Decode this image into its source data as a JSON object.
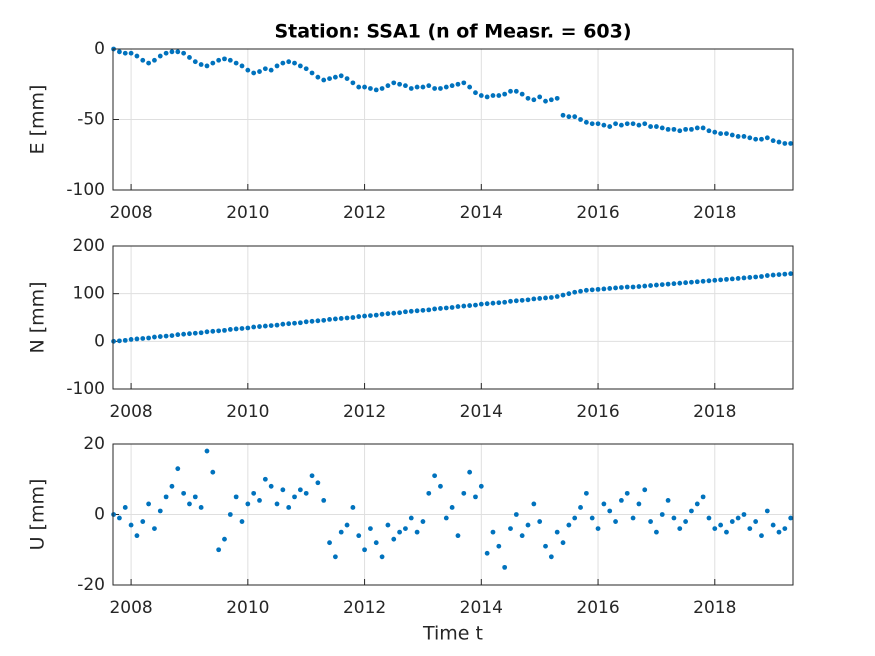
{
  "chart_data": [
    {
      "type": "scatter",
      "title": "Station: SSA1 (n of Measr. = 603)",
      "y_label": "E [mm]",
      "color": "#0072bd",
      "grid": true,
      "xlim": [
        2007.69,
        2019.34
      ],
      "xticks": [
        2008,
        2010,
        2012,
        2014,
        2016,
        2018
      ],
      "ylim": [
        -100,
        0
      ],
      "yticks": [
        -100,
        -50,
        0
      ],
      "x": [
        2007.7,
        2007.8,
        2007.9,
        2008,
        2008.1,
        2008.2,
        2008.3,
        2008.4,
        2008.5,
        2008.6,
        2008.7,
        2008.8,
        2008.9,
        2009,
        2009.1,
        2009.2,
        2009.3,
        2009.4,
        2009.5,
        2009.6,
        2009.7,
        2009.8,
        2009.9,
        2010,
        2010.1,
        2010.2,
        2010.3,
        2010.4,
        2010.5,
        2010.6,
        2010.7,
        2010.8,
        2010.9,
        2011,
        2011.1,
        2011.2,
        2011.3,
        2011.4,
        2011.5,
        2011.6,
        2011.7,
        2011.8,
        2011.9,
        2012,
        2012.1,
        2012.2,
        2012.3,
        2012.4,
        2012.5,
        2012.6,
        2012.7,
        2012.8,
        2012.9,
        2013,
        2013.1,
        2013.2,
        2013.3,
        2013.4,
        2013.5,
        2013.6,
        2013.7,
        2013.8,
        2013.9,
        2014,
        2014.1,
        2014.2,
        2014.3,
        2014.4,
        2014.5,
        2014.6,
        2014.7,
        2014.8,
        2014.9,
        2015,
        2015.1,
        2015.2,
        2015.3,
        2015.4,
        2015.5,
        2015.6,
        2015.7,
        2015.8,
        2015.9,
        2016,
        2016.1,
        2016.2,
        2016.3,
        2016.4,
        2016.5,
        2016.6,
        2016.7,
        2016.8,
        2016.9,
        2017,
        2017.1,
        2017.2,
        2017.3,
        2017.4,
        2017.5,
        2017.6,
        2017.7,
        2017.8,
        2017.9,
        2018,
        2018.1,
        2018.2,
        2018.3,
        2018.4,
        2018.5,
        2018.6,
        2018.7,
        2018.8,
        2018.9,
        2019,
        2019.1,
        2019.2,
        2019.3
      ],
      "values": [
        0,
        -2,
        -3,
        -3,
        -5,
        -8,
        -10,
        -8,
        -5,
        -3,
        -2,
        -2,
        -3,
        -6,
        -9,
        -11,
        -12,
        -10,
        -8,
        -7,
        -8,
        -10,
        -12,
        -15,
        -17,
        -16,
        -14,
        -15,
        -12,
        -10,
        -9,
        -10,
        -12,
        -14,
        -17,
        -20,
        -22,
        -21,
        -20,
        -19,
        -21,
        -24,
        -27,
        -27,
        -28,
        -29,
        -28,
        -26,
        -24,
        -25,
        -26,
        -28,
        -27,
        -27,
        -26,
        -28,
        -28,
        -27,
        -26,
        -25,
        -24,
        -27,
        -31,
        -33,
        -34,
        -33,
        -33,
        -32,
        -30,
        -30,
        -32,
        -35,
        -36,
        -34,
        -37,
        -36,
        -35,
        -47,
        -48,
        -48,
        -50,
        -52,
        -53,
        -53,
        -54,
        -55,
        -53,
        -54,
        -53,
        -53,
        -54,
        -53,
        -55,
        -55,
        -56,
        -57,
        -57,
        -58,
        -57,
        -57,
        -56,
        -56,
        -58,
        -59,
        -60,
        -60,
        -61,
        -62,
        -62,
        -63,
        -64,
        -64,
        -63,
        -65,
        -66,
        -67,
        -67
      ]
    },
    {
      "type": "scatter",
      "y_label": "N [mm]",
      "color": "#0072bd",
      "grid": true,
      "xlim": [
        2007.69,
        2019.34
      ],
      "xticks": [
        2008,
        2010,
        2012,
        2014,
        2016,
        2018
      ],
      "ylim": [
        -100,
        200
      ],
      "yticks": [
        -100,
        0,
        100,
        200
      ],
      "x": [
        2007.7,
        2007.8,
        2007.9,
        2008,
        2008.1,
        2008.2,
        2008.3,
        2008.4,
        2008.5,
        2008.6,
        2008.7,
        2008.8,
        2008.9,
        2009,
        2009.1,
        2009.2,
        2009.3,
        2009.4,
        2009.5,
        2009.6,
        2009.7,
        2009.8,
        2009.9,
        2010,
        2010.1,
        2010.2,
        2010.3,
        2010.4,
        2010.5,
        2010.6,
        2010.7,
        2010.8,
        2010.9,
        2011,
        2011.1,
        2011.2,
        2011.3,
        2011.4,
        2011.5,
        2011.6,
        2011.7,
        2011.8,
        2011.9,
        2012,
        2012.1,
        2012.2,
        2012.3,
        2012.4,
        2012.5,
        2012.6,
        2012.7,
        2012.8,
        2012.9,
        2013,
        2013.1,
        2013.2,
        2013.3,
        2013.4,
        2013.5,
        2013.6,
        2013.7,
        2013.8,
        2013.9,
        2014,
        2014.1,
        2014.2,
        2014.3,
        2014.4,
        2014.5,
        2014.6,
        2014.7,
        2014.8,
        2014.9,
        2015,
        2015.1,
        2015.2,
        2015.3,
        2015.4,
        2015.5,
        2015.6,
        2015.7,
        2015.8,
        2015.9,
        2016,
        2016.1,
        2016.2,
        2016.3,
        2016.4,
        2016.5,
        2016.6,
        2016.7,
        2016.8,
        2016.9,
        2017,
        2017.1,
        2017.2,
        2017.3,
        2017.4,
        2017.5,
        2017.6,
        2017.7,
        2017.8,
        2017.9,
        2018,
        2018.1,
        2018.2,
        2018.3,
        2018.4,
        2018.5,
        2018.6,
        2018.7,
        2018.8,
        2018.9,
        2019,
        2019.1,
        2019.2,
        2019.3
      ],
      "values": [
        0,
        1,
        2,
        4,
        5,
        6,
        7,
        9,
        10,
        11,
        12,
        14,
        15,
        16,
        17,
        18,
        20,
        21,
        22,
        23,
        25,
        26,
        27,
        28,
        30,
        31,
        32,
        33,
        34,
        36,
        37,
        38,
        39,
        41,
        42,
        43,
        44,
        46,
        47,
        48,
        49,
        50,
        52,
        53,
        54,
        55,
        57,
        58,
        59,
        60,
        62,
        63,
        64,
        65,
        66,
        68,
        69,
        70,
        71,
        73,
        74,
        75,
        76,
        78,
        79,
        80,
        81,
        82,
        84,
        85,
        86,
        87,
        89,
        90,
        91,
        92,
        94,
        97,
        100,
        103,
        105,
        107,
        108,
        109,
        110,
        111,
        112,
        113,
        114,
        114,
        115,
        116,
        117,
        118,
        119,
        120,
        121,
        122,
        123,
        124,
        125,
        126,
        127,
        128,
        129,
        130,
        131,
        132,
        133,
        134,
        135,
        136,
        138,
        139,
        140,
        141,
        142
      ]
    },
    {
      "type": "scatter",
      "y_label": "U [mm]",
      "x_label": "Time t",
      "color": "#0072bd",
      "grid": true,
      "xlim": [
        2007.69,
        2019.34
      ],
      "xticks": [
        2008,
        2010,
        2012,
        2014,
        2016,
        2018
      ],
      "ylim": [
        -20,
        20
      ],
      "yticks": [
        -20,
        0,
        20
      ],
      "x": [
        2007.7,
        2007.8,
        2007.9,
        2008,
        2008.1,
        2008.2,
        2008.3,
        2008.4,
        2008.5,
        2008.6,
        2008.7,
        2008.8,
        2008.9,
        2009,
        2009.1,
        2009.2,
        2009.3,
        2009.4,
        2009.5,
        2009.6,
        2009.7,
        2009.8,
        2009.9,
        2010,
        2010.1,
        2010.2,
        2010.3,
        2010.4,
        2010.5,
        2010.6,
        2010.7,
        2010.8,
        2010.9,
        2011,
        2011.1,
        2011.2,
        2011.3,
        2011.4,
        2011.5,
        2011.6,
        2011.7,
        2011.8,
        2011.9,
        2012,
        2012.1,
        2012.2,
        2012.3,
        2012.4,
        2012.5,
        2012.6,
        2012.7,
        2012.8,
        2012.9,
        2013,
        2013.1,
        2013.2,
        2013.3,
        2013.4,
        2013.5,
        2013.6,
        2013.7,
        2013.8,
        2013.9,
        2014,
        2014.1,
        2014.2,
        2014.3,
        2014.4,
        2014.5,
        2014.6,
        2014.7,
        2014.8,
        2014.9,
        2015,
        2015.1,
        2015.2,
        2015.3,
        2015.4,
        2015.5,
        2015.6,
        2015.7,
        2015.8,
        2015.9,
        2016,
        2016.1,
        2016.2,
        2016.3,
        2016.4,
        2016.5,
        2016.6,
        2016.7,
        2016.8,
        2016.9,
        2017,
        2017.1,
        2017.2,
        2017.3,
        2017.4,
        2017.5,
        2017.6,
        2017.7,
        2017.8,
        2017.9,
        2018,
        2018.1,
        2018.2,
        2018.3,
        2018.4,
        2018.5,
        2018.6,
        2018.7,
        2018.8,
        2018.9,
        2019,
        2019.1,
        2019.2,
        2019.3
      ],
      "values": [
        0,
        -1,
        2,
        -3,
        -6,
        -2,
        3,
        -4,
        1,
        5,
        8,
        13,
        6,
        3,
        5,
        2,
        18,
        12,
        -10,
        -7,
        0,
        5,
        -2,
        3,
        6,
        4,
        10,
        8,
        3,
        7,
        2,
        5,
        7,
        6,
        11,
        9,
        4,
        -8,
        -12,
        -5,
        -3,
        2,
        -6,
        -10,
        -4,
        -8,
        -12,
        -3,
        -7,
        -5,
        -4,
        -1,
        -5,
        -2,
        6,
        11,
        8,
        -1,
        2,
        -6,
        6,
        12,
        5,
        8,
        -11,
        -5,
        -9,
        -15,
        -4,
        0,
        -6,
        -3,
        3,
        -2,
        -9,
        -12,
        -5,
        -8,
        -3,
        -1,
        2,
        6,
        -1,
        -4,
        3,
        1,
        -2,
        4,
        6,
        -1,
        3,
        7,
        -2,
        -5,
        0,
        4,
        -1,
        -4,
        -2,
        1,
        3,
        5,
        -1,
        -4,
        -3,
        -5,
        -2,
        -1,
        0,
        -4,
        -2,
        -6,
        1,
        -3,
        -5,
        -4,
        -1
      ]
    }
  ]
}
